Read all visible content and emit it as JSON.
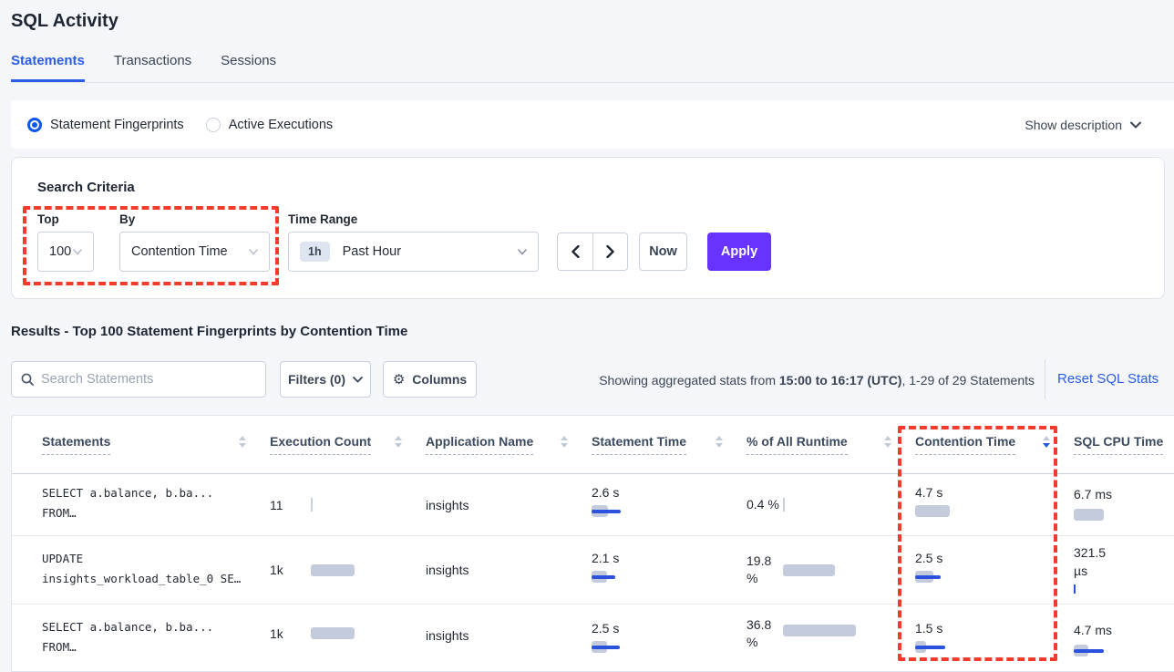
{
  "page": {
    "title": "SQL Activity"
  },
  "tabs": {
    "items": [
      {
        "label": "Statements",
        "active": true
      },
      {
        "label": "Transactions",
        "active": false
      },
      {
        "label": "Sessions",
        "active": false
      }
    ]
  },
  "view_toggle": {
    "fingerprints_label": "Statement Fingerprints",
    "active_executions_label": "Active Executions",
    "show_description_label": "Show description"
  },
  "search_criteria": {
    "heading": "Search Criteria",
    "top_label": "Top",
    "top_value": "100",
    "by_label": "By",
    "by_value": "Contention Time",
    "time_range_label": "Time Range",
    "time_range_badge": "1h",
    "time_range_value": "Past Hour",
    "now_label": "Now",
    "apply_label": "Apply"
  },
  "results": {
    "heading": "Results - Top 100 Statement Fingerprints by Contention Time",
    "search_placeholder": "Search Statements",
    "filters_label": "Filters (0)",
    "columns_label": "Columns",
    "showing_prefix": "Showing aggregated stats from ",
    "showing_range": "15:00 to 16:17 (UTC)",
    "showing_suffix": ", 1-29 of 29 Statements",
    "reset_label": "Reset SQL Stats"
  },
  "table": {
    "columns": [
      {
        "label": "Statements",
        "sort": "none"
      },
      {
        "label": "Execution Count",
        "sort": "none"
      },
      {
        "label": "Application Name",
        "sort": "none"
      },
      {
        "label": "Statement Time",
        "sort": "none"
      },
      {
        "label": "% of All Runtime",
        "sort": "none"
      },
      {
        "label": "Contention Time",
        "sort": "desc"
      },
      {
        "label": "SQL CPU Time",
        "sort": "hidden"
      }
    ],
    "rows": [
      {
        "statement_line1": "SELECT a.balance, b.ba...",
        "statement_line2": "FROM…",
        "execution_count": "11",
        "application_name": "insights",
        "statement_time": "2.6 s",
        "pct_runtime": "0.4 %",
        "contention_time": "4.7 s",
        "sql_cpu_time": "6.7 ms",
        "bars": {
          "exec": {
            "gray": 0,
            "blue": 0,
            "tick_gray": 2,
            "tick_blue": 0
          },
          "stmt_time": {
            "gray": 18,
            "blue": 32,
            "tick_gray": 0,
            "tick_blue": 0
          },
          "pct": {
            "gray": 0,
            "blue": 0,
            "tick_gray": 2,
            "tick_blue": 0
          },
          "contention": {
            "gray": 38,
            "blue": 0,
            "tick_gray": 0,
            "tick_blue": 0
          },
          "cpu": {
            "gray": 33,
            "blue": 0,
            "tick_gray": 0,
            "tick_blue": 0
          }
        }
      },
      {
        "statement_line1": "UPDATE",
        "statement_line2": "insights_workload_table_0 SE…",
        "execution_count": "1k",
        "application_name": "insights",
        "statement_time": "2.1 s",
        "pct_runtime": "19.8 %",
        "contention_time": "2.5 s",
        "sql_cpu_time": "321.5 µs",
        "bars": {
          "exec": {
            "gray": 48,
            "blue": 0,
            "tick_gray": 0,
            "tick_blue": 0
          },
          "stmt_time": {
            "gray": 17,
            "blue": 26,
            "tick_gray": 0,
            "tick_blue": 0
          },
          "pct": {
            "gray": 57,
            "blue": 0,
            "tick_gray": 0,
            "tick_blue": 0
          },
          "contention": {
            "gray": 20,
            "blue": 28,
            "tick_gray": 0,
            "tick_blue": 0
          },
          "cpu": {
            "gray": 0,
            "blue": 0,
            "tick_gray": 0,
            "tick_blue": 2
          }
        }
      },
      {
        "statement_line1": "SELECT a.balance, b.ba...",
        "statement_line2": "FROM…",
        "execution_count": "1k",
        "application_name": "insights",
        "statement_time": "2.5 s",
        "pct_runtime": "36.8 %",
        "contention_time": "1.5 s",
        "sql_cpu_time": "4.7 ms",
        "bars": {
          "exec": {
            "gray": 48,
            "blue": 0,
            "tick_gray": 0,
            "tick_blue": 0
          },
          "stmt_time": {
            "gray": 17,
            "blue": 31,
            "tick_gray": 0,
            "tick_blue": 0
          },
          "pct": {
            "gray": 80,
            "blue": 0,
            "tick_gray": 0,
            "tick_blue": 0
          },
          "contention": {
            "gray": 12,
            "blue": 33,
            "tick_gray": 0,
            "tick_blue": 0
          },
          "cpu": {
            "gray": 16,
            "blue": 33,
            "tick_gray": 0,
            "tick_blue": 0
          }
        }
      }
    ]
  },
  "annotations": {
    "color": "#F23B2B",
    "boxes": [
      "top-by-controls",
      "contention-time-column"
    ]
  },
  "colors": {
    "accent_blue": "#2B5CE6",
    "apply_purple": "#6933FF",
    "bar_gray": "#C4CBDC",
    "bar_blue": "#2A52DC",
    "annotation_red": "#F23B2B",
    "page_background": "#F4F6FA"
  }
}
